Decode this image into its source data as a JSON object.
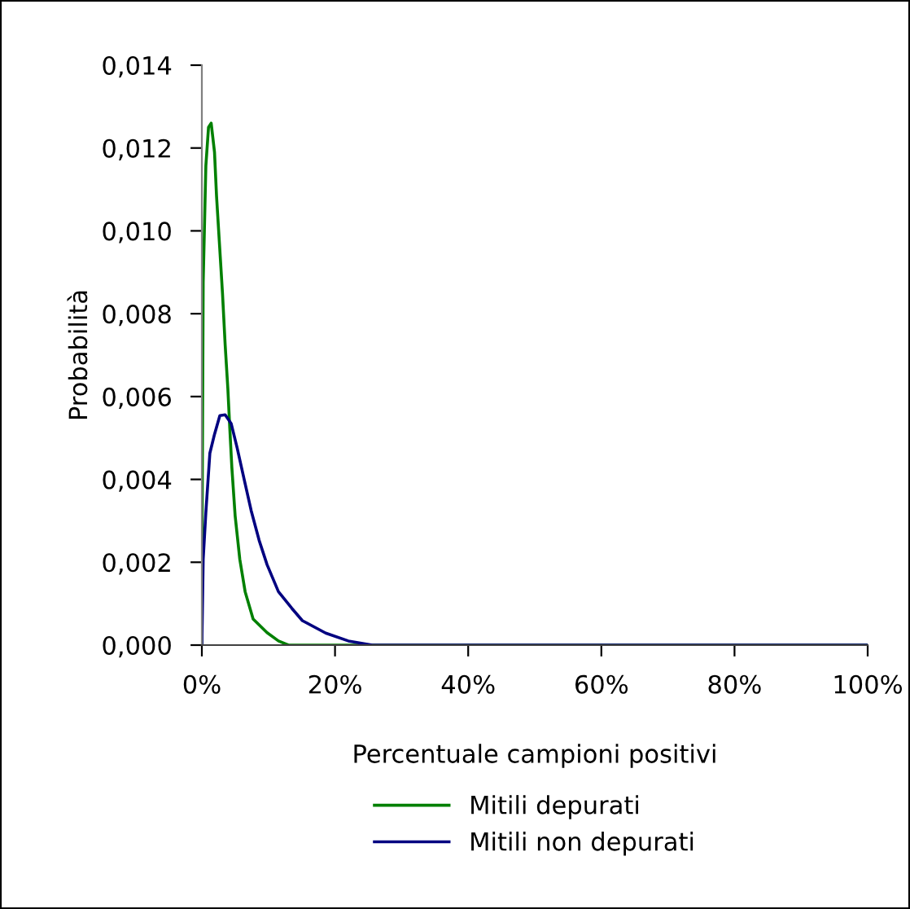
{
  "chart_data": {
    "type": "line",
    "xlabel": "Percentuale campioni positivi",
    "ylabel": "Probabilità",
    "series": [
      {
        "name": "Mitili depurati",
        "color": "#008000",
        "x": [
          0,
          0.05,
          0.2,
          0.6,
          1.0,
          1.4,
          1.9,
          2.2,
          2.7,
          3.1,
          3.5,
          3.9,
          4.2,
          4.5,
          5.0,
          5.7,
          6.5,
          7.7,
          9.8,
          11.5,
          13,
          25,
          100
        ],
        "values": [
          0,
          0.00325,
          0.00876,
          0.01157,
          0.0125,
          0.0126,
          0.0119,
          0.01085,
          0.00954,
          0.00849,
          0.00725,
          0.0062,
          0.00522,
          0.0043,
          0.00312,
          0.00207,
          0.00129,
          0.00063,
          0.0003,
          0.0001,
          0,
          0,
          0
        ]
      },
      {
        "name": "Mitili non depurati",
        "color": "#000080",
        "x": [
          0,
          0.2,
          0.6,
          1.2,
          1.9,
          2.7,
          3.5,
          4.4,
          5.3,
          6.3,
          7.4,
          8.6,
          9.8,
          11.5,
          13.5,
          15.1,
          18.6,
          22,
          25.6,
          100
        ],
        "values": [
          0,
          0.00207,
          0.0032,
          0.00463,
          0.00509,
          0.00554,
          0.00556,
          0.00535,
          0.00476,
          0.00404,
          0.00325,
          0.00253,
          0.00194,
          0.00129,
          0.00089,
          0.00059,
          0.00029,
          0.0001,
          0,
          0
        ]
      }
    ],
    "xlim": [
      0,
      100
    ],
    "xticks": [
      {
        "value": 0,
        "label": "0%"
      },
      {
        "value": 20,
        "label": "20%"
      },
      {
        "value": 40,
        "label": "40%"
      },
      {
        "value": 60,
        "label": "60%"
      },
      {
        "value": 80,
        "label": "80%"
      },
      {
        "value": 100,
        "label": "100%"
      }
    ],
    "ylim": [
      0,
      0.014
    ],
    "yticks": [
      {
        "value": 0,
        "label": "0,000"
      },
      {
        "value": 0.002,
        "label": "0,002"
      },
      {
        "value": 0.004,
        "label": "0,004"
      },
      {
        "value": 0.006,
        "label": "0,006"
      },
      {
        "value": 0.008,
        "label": "0,008"
      },
      {
        "value": 0.01,
        "label": "0,010"
      },
      {
        "value": 0.012,
        "label": "0,012"
      },
      {
        "value": 0.014,
        "label": "0,014"
      }
    ],
    "grid": false,
    "legend": "bottom",
    "marker": "none",
    "line_style": "solid"
  }
}
